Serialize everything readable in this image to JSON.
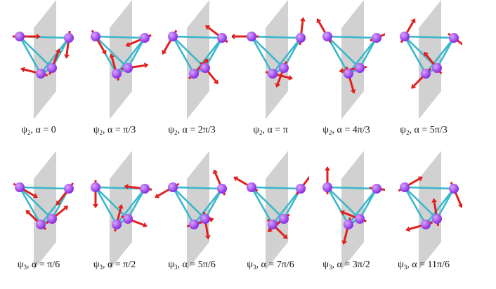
{
  "colors": {
    "plane": "#c9c9c9",
    "bond": "#3ab7cc",
    "atom": "#8a2be2",
    "atom_highlight": "#d7a6ff",
    "arrow": "#e0201e"
  },
  "rows": [
    {
      "psi": "ψ",
      "sub": "2",
      "panels": [
        {
          "caption_rest": ", α = 0"
        },
        {
          "caption_rest": ", α = π/3"
        },
        {
          "caption_rest": ", α = 2π/3"
        },
        {
          "caption_rest": ", α = π"
        },
        {
          "caption_rest": ", α = 4π/3"
        },
        {
          "caption_rest": ", α = 5π/3"
        }
      ]
    },
    {
      "psi": "ψ",
      "sub": "3",
      "panels": [
        {
          "caption_rest": ", α = π/6"
        },
        {
          "caption_rest": ", α = π/2"
        },
        {
          "caption_rest": ", α = 5π/6"
        },
        {
          "caption_rest": ", α = 7π/6"
        },
        {
          "caption_rest": ", α = 3π/2"
        },
        {
          "caption_rest": ", α = 11π/6"
        }
      ]
    }
  ]
}
